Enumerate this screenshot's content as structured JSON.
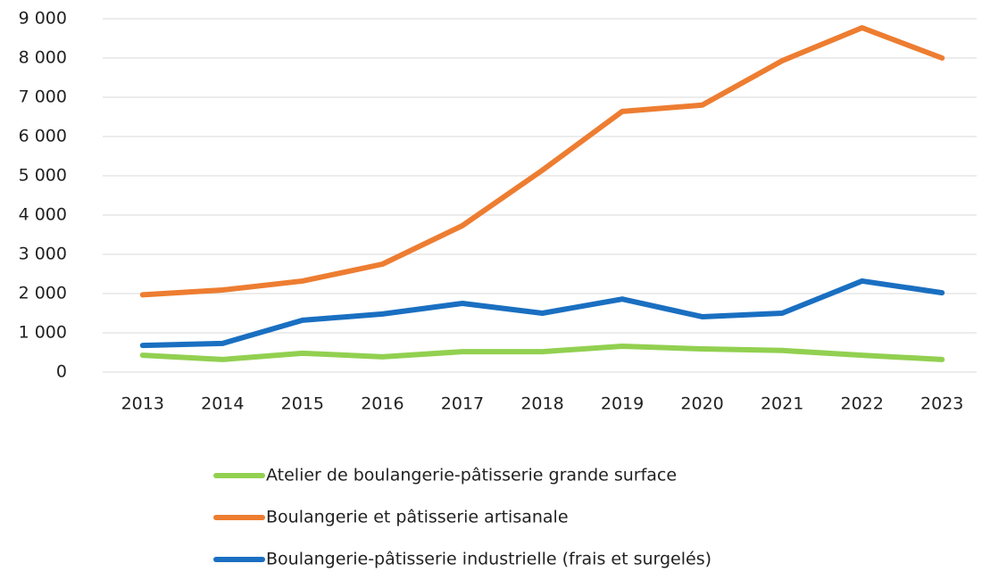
{
  "chart_data": {
    "type": "line",
    "categories": [
      "2013",
      "2014",
      "2015",
      "2016",
      "2017",
      "2018",
      "2019",
      "2020",
      "2021",
      "2022",
      "2023"
    ],
    "series": [
      {
        "name": "Atelier de boulangerie-pâtisserie grande surface",
        "color": "#92d050",
        "values": [
          430,
          320,
          480,
          390,
          520,
          520,
          660,
          590,
          550,
          430,
          320
        ]
      },
      {
        "name": "Boulangerie et pâtisserie artisanale",
        "color": "#ed7d31",
        "values": [
          1970,
          2090,
          2320,
          2750,
          3730,
          5140,
          6640,
          6800,
          7930,
          8770,
          8000
        ]
      },
      {
        "name": "Boulangerie-pâtisserie industrielle (frais et surgelés)",
        "color": "#1a6fc1",
        "values": [
          680,
          730,
          1320,
          1480,
          1750,
          1500,
          1860,
          1410,
          1500,
          2320,
          2020
        ]
      }
    ],
    "ylim": [
      0,
      9000
    ],
    "yticks": [
      0,
      {
        "value": 1000,
        "label": "1 000"
      },
      {
        "value": 2000,
        "label": "2 000"
      },
      {
        "value": 3000,
        "label": "3 000"
      },
      {
        "value": 4000,
        "label": "4 000"
      },
      {
        "value": 5000,
        "label": "5 000"
      },
      {
        "value": 6000,
        "label": "6 000"
      },
      {
        "value": 7000,
        "label": "7 000"
      },
      {
        "value": 8000,
        "label": "8 000"
      },
      {
        "value": 9000,
        "label": "9 000"
      }
    ],
    "grid": true
  }
}
